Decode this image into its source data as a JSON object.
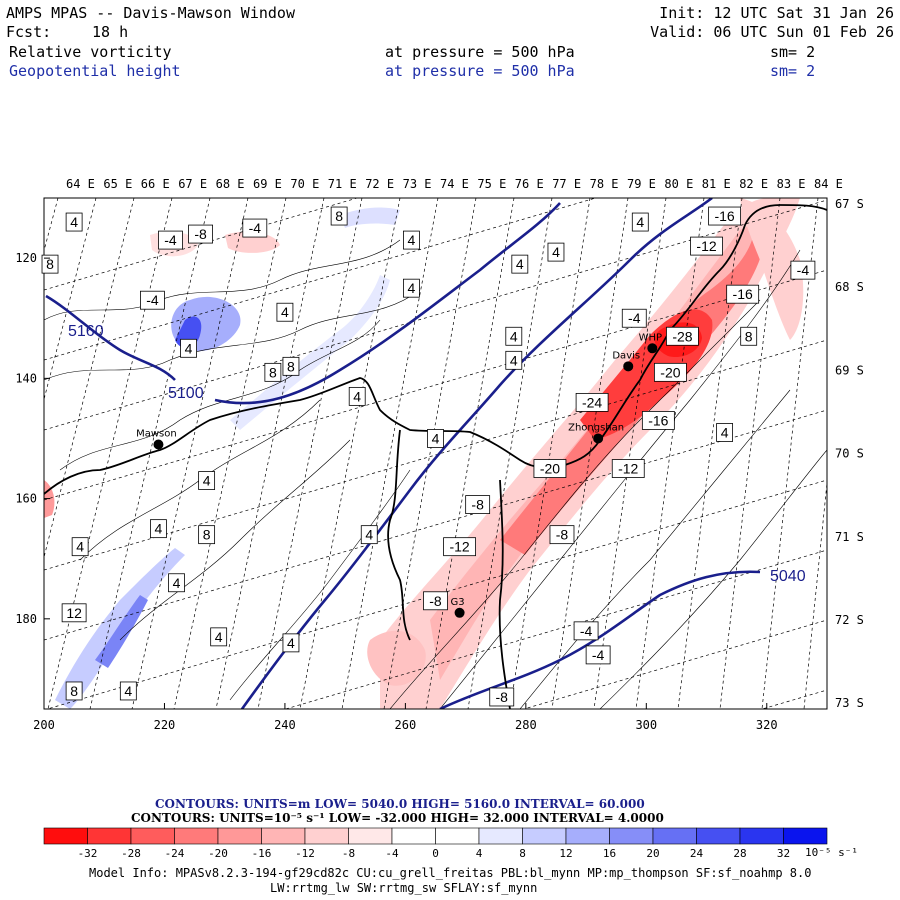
{
  "header": {
    "title": "AMPS MPAS -- Davis-Mawson Window",
    "fcst_label": "Fcst:",
    "fcst_value": "18 h",
    "init": "Init: 12 UTC Sat 31 Jan 26",
    "valid": "Valid: 06 UTC Sun 01 Feb 26",
    "field1": {
      "name": "Relative vorticity",
      "pressure": "at pressure =  500 hPa",
      "sm": "sm= 2"
    },
    "field2": {
      "name": "Geopotential height",
      "pressure": "at pressure =  500 hPa",
      "sm": "sm= 2"
    }
  },
  "colors": {
    "text": "#000000",
    "height_contour": "#1a1f8c",
    "header_field2": "#1f2fa8",
    "coast": "#000000"
  },
  "chart_data": {
    "type": "contour-map",
    "title": "Relative vorticity and Geopotential height at 500 hPa",
    "x_axis": {
      "range": [
        200,
        330
      ],
      "ticks": [
        200,
        220,
        240,
        260,
        280,
        300,
        320
      ]
    },
    "y_axis": {
      "range": [
        195,
        110
      ],
      "ticks": [
        120,
        140,
        160,
        180
      ]
    },
    "longitude_labels": [
      "64 E",
      "65 E",
      "66 E",
      "67 E",
      "68 E",
      "69 E",
      "70 E",
      "71 E",
      "72 E",
      "73 E",
      "74 E",
      "75 E",
      "76 E",
      "77 E",
      "78 E",
      "79 E",
      "80 E",
      "81 E",
      "82 E",
      "83 E",
      "84 E"
    ],
    "latitude_labels": [
      "67 S",
      "68 S",
      "69 S",
      "70 S",
      "71 S",
      "72 S",
      "73 S"
    ],
    "height_contours": {
      "units": "m",
      "low": 5040.0,
      "high": 5160.0,
      "interval": 60.0,
      "labels": [
        "5160",
        "5100",
        "5040"
      ]
    },
    "vorticity": {
      "units": "10^-5 s^-1",
      "low": -32.0,
      "high": 32.0,
      "interval": 4.0,
      "colorbar_levels": [
        -32,
        -28,
        -24,
        -20,
        -16,
        -12,
        -8,
        -4,
        0,
        4,
        8,
        12,
        16,
        20,
        24,
        28,
        32
      ],
      "colorbar_colors": [
        "#ff0d0d",
        "#ff3535",
        "#ff5c5c",
        "#ff7a7a",
        "#ff9898",
        "#ffb5b5",
        "#ffd0d0",
        "#ffe8e8",
        "#ffffff",
        "#ffffff",
        "#e6e9ff",
        "#c6ccff",
        "#a6aefc",
        "#868ef8",
        "#6670f4",
        "#4650f2",
        "#2a35f0",
        "#0a14ee"
      ],
      "contour_labels": [
        {
          "x": 205,
          "y": 114,
          "v": "4"
        },
        {
          "x": 221,
          "y": 117,
          "v": "-4"
        },
        {
          "x": 226,
          "y": 116,
          "v": "-8"
        },
        {
          "x": 235,
          "y": 115,
          "v": "-4"
        },
        {
          "x": 249,
          "y": 113,
          "v": "8"
        },
        {
          "x": 261,
          "y": 117,
          "v": "4"
        },
        {
          "x": 201,
          "y": 121,
          "v": "8"
        },
        {
          "x": 218,
          "y": 127,
          "v": "-4"
        },
        {
          "x": 240,
          "y": 129,
          "v": "4"
        },
        {
          "x": 261,
          "y": 125,
          "v": "4"
        },
        {
          "x": 279,
          "y": 121,
          "v": "4"
        },
        {
          "x": 285,
          "y": 119,
          "v": "4"
        },
        {
          "x": 299,
          "y": 114,
          "v": "4"
        },
        {
          "x": 313,
          "y": 113,
          "v": "-16"
        },
        {
          "x": 310,
          "y": 118,
          "v": "-12"
        },
        {
          "x": 326,
          "y": 122,
          "v": "-4"
        },
        {
          "x": 316,
          "y": 126,
          "v": "-16"
        },
        {
          "x": 298,
          "y": 130,
          "v": "-4"
        },
        {
          "x": 306,
          "y": 133,
          "v": "-28"
        },
        {
          "x": 317,
          "y": 133,
          "v": "8"
        },
        {
          "x": 224,
          "y": 135,
          "v": "4"
        },
        {
          "x": 278,
          "y": 133,
          "v": "4"
        },
        {
          "x": 278,
          "y": 137,
          "v": "4"
        },
        {
          "x": 238,
          "y": 139,
          "v": "8"
        },
        {
          "x": 241,
          "y": 138,
          "v": "8"
        },
        {
          "x": 252,
          "y": 143,
          "v": "4"
        },
        {
          "x": 304,
          "y": 139,
          "v": "-20"
        },
        {
          "x": 291,
          "y": 144,
          "v": "-24"
        },
        {
          "x": 302,
          "y": 147,
          "v": "-16"
        },
        {
          "x": 313,
          "y": 149,
          "v": "4"
        },
        {
          "x": 265,
          "y": 150,
          "v": "4"
        },
        {
          "x": 284,
          "y": 155,
          "v": "-20"
        },
        {
          "x": 297,
          "y": 155,
          "v": "-12"
        },
        {
          "x": 227,
          "y": 157,
          "v": "4"
        },
        {
          "x": 272,
          "y": 161,
          "v": "-8"
        },
        {
          "x": 227,
          "y": 166,
          "v": "8"
        },
        {
          "x": 206,
          "y": 168,
          "v": "4"
        },
        {
          "x": 219,
          "y": 165,
          "v": "4"
        },
        {
          "x": 254,
          "y": 166,
          "v": "4"
        },
        {
          "x": 286,
          "y": 166,
          "v": "-8"
        },
        {
          "x": 269,
          "y": 168,
          "v": "-12"
        },
        {
          "x": 222,
          "y": 174,
          "v": "4"
        },
        {
          "x": 265,
          "y": 177,
          "v": "-8"
        },
        {
          "x": 205,
          "y": 179,
          "v": "12"
        },
        {
          "x": 290,
          "y": 182,
          "v": "-4"
        },
        {
          "x": 292,
          "y": 186,
          "v": "-4"
        },
        {
          "x": 229,
          "y": 183,
          "v": "4"
        },
        {
          "x": 241,
          "y": 184,
          "v": "4"
        },
        {
          "x": 205,
          "y": 192,
          "v": "8"
        },
        {
          "x": 214,
          "y": 192,
          "v": "4"
        },
        {
          "x": 276,
          "y": 193,
          "v": "-8"
        }
      ]
    },
    "stations": [
      {
        "name": "Mawson",
        "x": 219,
        "y": 151
      },
      {
        "name": "Davis",
        "x": 297,
        "y": 138
      },
      {
        "name": "WHP",
        "x": 301,
        "y": 135
      },
      {
        "name": "Zhongshan",
        "x": 292,
        "y": 150
      },
      {
        "name": "G3",
        "x": 269,
        "y": 179
      }
    ]
  },
  "footer": {
    "contours1": "CONTOURS:  UNITS=m  LOW=  5040.0      HIGH=  5160.0      INTERVAL=   60.000",
    "contours2": "CONTOURS:  UNITS=10⁻⁵ s⁻¹  LOW=  -32.000      HIGH=  32.000      INTERVAL=   4.0000",
    "colorbar_units": "10⁻⁵ s⁻¹",
    "model_info1": "Model Info: MPASv8.2.3-194-gf29cd82c CU:cu_grell_freitas PBL:bl_mynn MP:mp_thompson SF:sf_noahmp 8.0",
    "model_info2": "LW:rrtmg_lw SW:rrtmg_sw SFLAY:sf_mynn"
  }
}
